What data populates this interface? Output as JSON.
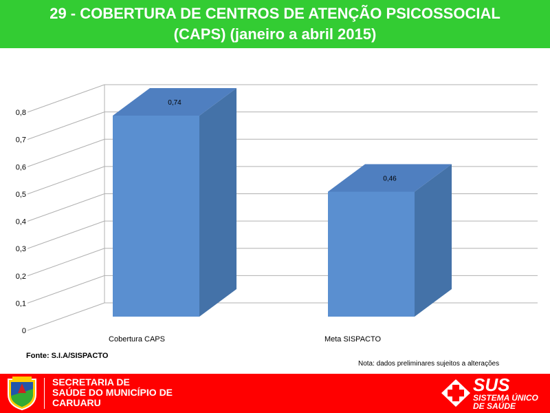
{
  "header": {
    "title_line1": "29 - COBERTURA DE CENTROS DE ATENÇÃO PSICOSSOCIAL",
    "title_line2": "(CAPS) (janeiro a abril 2015)"
  },
  "chart_data": {
    "type": "bar",
    "categories": [
      "Cobertura CAPS",
      "Meta SISPACTO"
    ],
    "values": [
      0.74,
      0.46
    ],
    "value_labels": [
      "0,74",
      "0,46"
    ],
    "ylim": [
      0,
      0.8
    ],
    "yticks": [
      0,
      0.1,
      0.2,
      0.3,
      0.4,
      0.5,
      0.6,
      0.7,
      0.8
    ],
    "ytick_labels": [
      "0",
      "0,1",
      "0,2",
      "0,3",
      "0,4",
      "0,5",
      "0,6",
      "0,7",
      "0,8"
    ],
    "grid": true,
    "three_d": true,
    "colors": {
      "front": "#5a8fd0",
      "side": "#4472a8",
      "top": "#4f7fc0"
    }
  },
  "source_label": "Fonte: S.I.A/SISPACTO",
  "note_label": "Nota: dados preliminares sujeitos a alterações",
  "footer": {
    "secretaria_line1": "SECRETARIA DE",
    "secretaria_line2": "SAÚDE DO MUNICÍPIO DE",
    "secretaria_line3": "CARUARU",
    "sus_big": "SUS",
    "sus_line1": "SISTEMA ÚNICO",
    "sus_line2": "DE SAÚDE",
    "background": "#ff0000"
  }
}
